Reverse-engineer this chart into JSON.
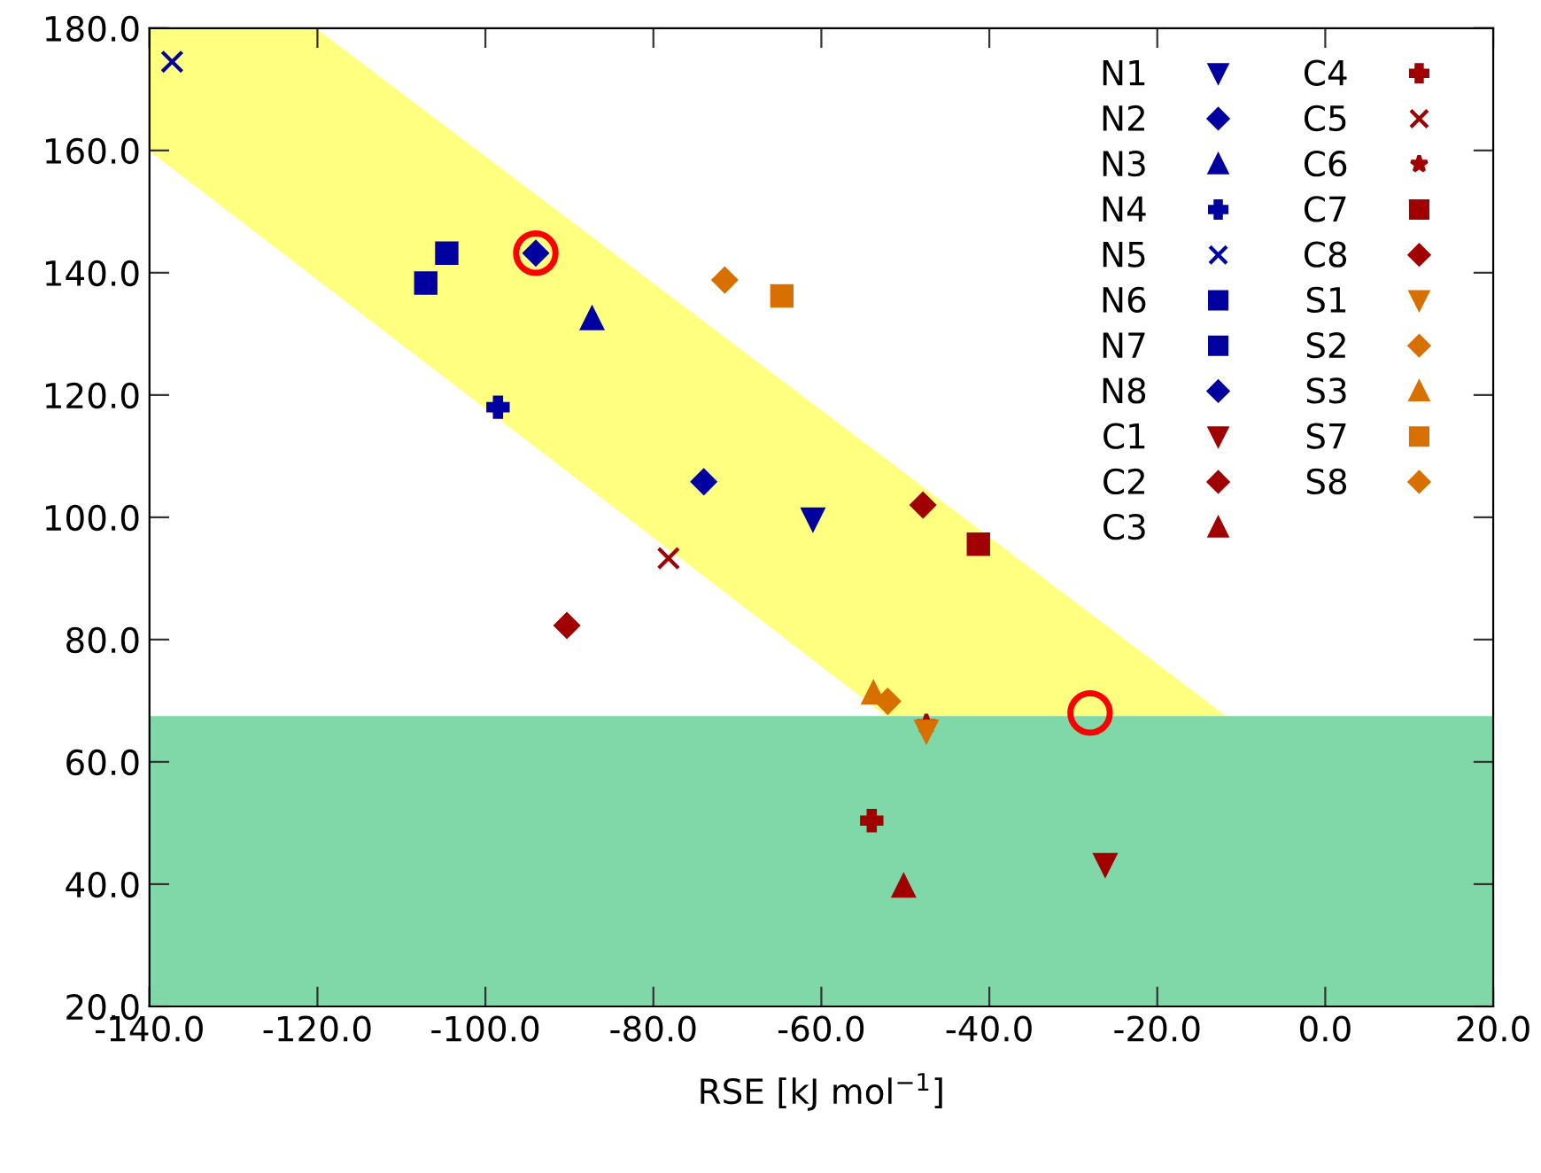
{
  "chart_data": {
    "type": "scatter",
    "xlabel": "RSE [kJ mol$^{−1}$]",
    "xlim": [
      -140.0,
      20.0
    ],
    "ylim": [
      20.0,
      180.0
    ],
    "xticks": [
      {
        "value": -140,
        "label": "-140.0"
      },
      {
        "value": -120,
        "label": "-120.0"
      },
      {
        "value": -100,
        "label": "-100.0"
      },
      {
        "value": -80,
        "label": "-80.0"
      },
      {
        "value": -60,
        "label": "-60.0"
      },
      {
        "value": -40,
        "label": "-40.0"
      },
      {
        "value": -20,
        "label": "-20.0"
      },
      {
        "value": 0,
        "label": "0.0"
      },
      {
        "value": 20,
        "label": "20.0"
      }
    ],
    "yticks": [
      {
        "value": 20,
        "label": "20.0"
      },
      {
        "value": 40,
        "label": "40.0"
      },
      {
        "value": 60,
        "label": "60.0"
      },
      {
        "value": 80,
        "label": "80.0"
      },
      {
        "value": 100,
        "label": "100.0"
      },
      {
        "value": 120,
        "label": "120.0"
      },
      {
        "value": 140,
        "label": "140.0"
      },
      {
        "value": 160,
        "label": "160.0"
      },
      {
        "value": 180,
        "label": "180.0"
      }
    ],
    "grid": false,
    "legend": "top right",
    "bands": [
      {
        "axis": "y",
        "from": 20.0,
        "to": 67.5,
        "color": "#80d8a8"
      }
    ],
    "series": [
      {
        "type": "area",
        "color": "#ffff80",
        "x": [
          -140.0,
          -120.2,
          -11.8,
          -52.3,
          -140.0
        ],
        "values": [
          180.0,
          180.0,
          67.5,
          67.5,
          159.9
        ]
      },
      {
        "name": "N1",
        "color": "#0000a0",
        "marker": "triangle_down",
        "x": [
          -61.0
        ],
        "values": [
          99.7
        ]
      },
      {
        "name": "N2",
        "color": "#0000a0",
        "marker": "diamond",
        "x": [
          -94.0
        ],
        "values": [
          143.2
        ]
      },
      {
        "name": "N3",
        "color": "#0000a0",
        "marker": "triangle",
        "x": [
          -87.3
        ],
        "values": [
          132.5
        ]
      },
      {
        "name": "N4",
        "color": "#0000a0",
        "marker": "plus",
        "x": [
          -98.5
        ],
        "values": [
          118.0
        ]
      },
      {
        "name": "N5",
        "color": "#0000a0",
        "marker": "cross",
        "x": [
          -137.3
        ],
        "values": [
          174.5
        ]
      },
      {
        "name": "N6",
        "color": "#0000a0",
        "marker": "square",
        "x": [
          -107.1
        ],
        "values": [
          138.3
        ]
      },
      {
        "name": "N7",
        "color": "#0000a0",
        "marker": "square",
        "x": [
          -104.6
        ],
        "values": [
          143.2
        ]
      },
      {
        "name": "N8",
        "color": "#0000a0",
        "marker": "diamond",
        "x": [
          -74.0
        ],
        "values": [
          105.8
        ]
      },
      {
        "name": "C1",
        "color": "#a00000",
        "marker": "triangle_down",
        "x": [
          -26.2
        ],
        "values": [
          43.2
        ]
      },
      {
        "name": "C2",
        "color": "#a00000",
        "marker": "diamond",
        "x": [
          -90.3
        ],
        "values": [
          82.3
        ]
      },
      {
        "name": "C3",
        "color": "#a00000",
        "marker": "triangle",
        "x": [
          -50.2
        ],
        "values": [
          39.7
        ]
      },
      {
        "name": "C4",
        "color": "#a00000",
        "marker": "plus",
        "x": [
          -54.0
        ],
        "values": [
          50.4
        ]
      },
      {
        "name": "C5",
        "color": "#a00000",
        "marker": "cross",
        "x": [
          -78.2
        ],
        "values": [
          93.3
        ]
      },
      {
        "name": "C6",
        "color": "#a00000",
        "marker": "star",
        "x": [
          -47.5
        ],
        "values": [
          66.2
        ]
      },
      {
        "name": "C7",
        "color": "#a00000",
        "marker": "square",
        "x": [
          -41.3
        ],
        "values": [
          95.6
        ]
      },
      {
        "name": "C8",
        "color": "#a00000",
        "marker": "diamond",
        "x": [
          -47.9
        ],
        "values": [
          102.0
        ]
      },
      {
        "name": "S1",
        "color": "#d87000",
        "marker": "triangle_down",
        "x": [
          -47.5
        ],
        "values": [
          65.0
        ]
      },
      {
        "name": "S2",
        "color": "#d87000",
        "marker": "diamond",
        "x": [
          -71.5
        ],
        "values": [
          138.8
        ]
      },
      {
        "name": "S3",
        "color": "#d87000",
        "marker": "triangle",
        "x": [
          -53.8
        ],
        "values": [
          71.3
        ]
      },
      {
        "name": "S7",
        "color": "#d87000",
        "marker": "square",
        "x": [
          -64.7
        ],
        "values": [
          136.2
        ]
      },
      {
        "name": "S8",
        "color": "#d87000",
        "marker": "diamond",
        "x": [
          -52.1
        ],
        "values": [
          69.9
        ]
      },
      {
        "type": "scatter",
        "color": "#ff0000",
        "marker": "circle",
        "x": [
          -94.0,
          -28.0
        ],
        "values": [
          143.2,
          68.0
        ]
      }
    ]
  }
}
